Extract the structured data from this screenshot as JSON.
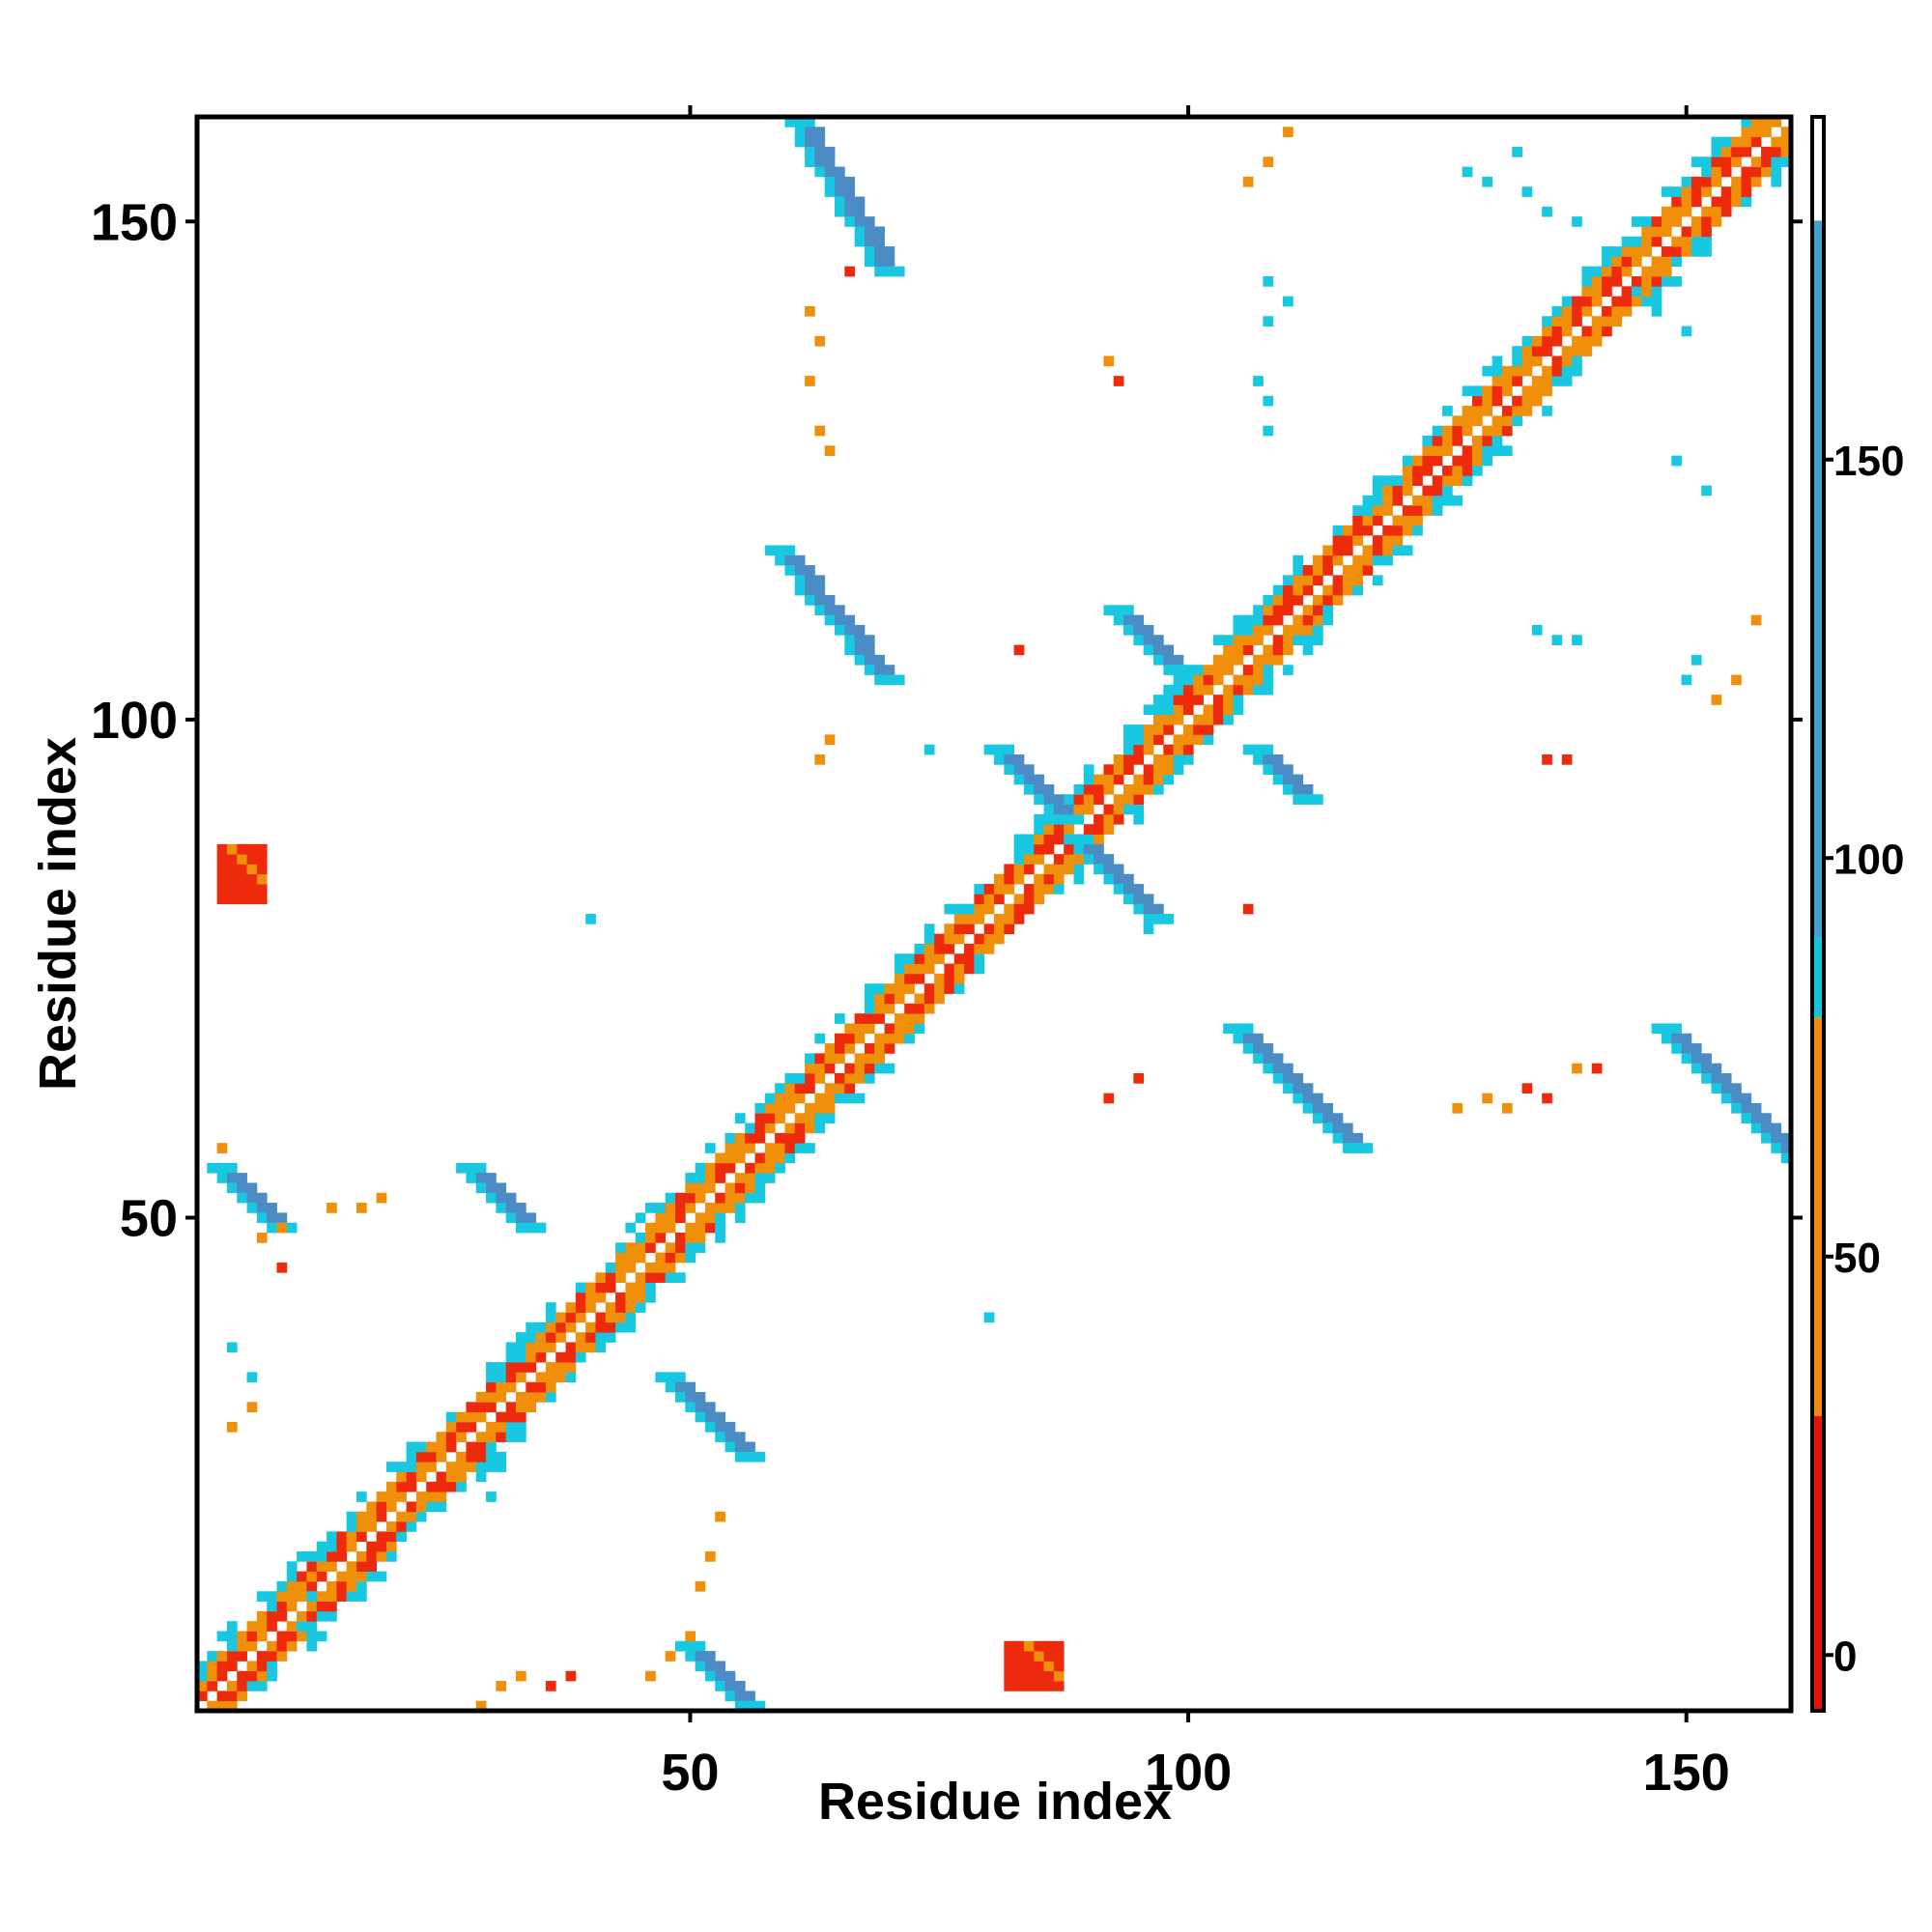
{
  "chart_data": {
    "type": "heatmap",
    "title": "",
    "xlabel": "Residue index",
    "ylabel": "Residue index",
    "xlim": [
      1,
      160
    ],
    "ylim": [
      1,
      160
    ],
    "x_ticks": [
      50,
      100,
      150
    ],
    "y_ticks": [
      50,
      100,
      150
    ],
    "colorbar": {
      "ticks": [
        0,
        50,
        100,
        150
      ],
      "range": [
        -7,
        193
      ],
      "bands": [
        {
          "from": -7,
          "to": 30,
          "color": "#e4120a"
        },
        {
          "from": 30,
          "to": 80,
          "color": "#f08a10"
        },
        {
          "from": 80,
          "to": 90,
          "color": "#0fc5dc"
        },
        {
          "from": 90,
          "to": 180,
          "color": "#46a0cc"
        },
        {
          "from": 180,
          "to": 193,
          "color": "#ffffff"
        }
      ]
    },
    "colors": {
      "red": "#ee2a0c",
      "orange": "#f0900a",
      "cyan": "#18c8e0",
      "blue": "#4b8cc4"
    },
    "grid": false,
    "legend": "colorbar-right",
    "regions": [
      {
        "kind": "diagonal",
        "from": 1,
        "to": 160
      },
      {
        "kind": "band",
        "x0": 60,
        "y0": 160,
        "x1": 69,
        "y1": 145,
        "width": 3,
        "color": "blue"
      },
      {
        "kind": "band",
        "x0": 58,
        "y0": 117,
        "x1": 69,
        "y1": 104,
        "width": 3,
        "color": "blue"
      },
      {
        "kind": "band",
        "x0": 92,
        "y0": 111,
        "x1": 98,
        "y1": 105,
        "width": 3,
        "color": "blue"
      },
      {
        "kind": "band",
        "x0": 80,
        "y0": 97,
        "x1": 87,
        "y1": 90,
        "width": 3,
        "color": "blue"
      },
      {
        "kind": "band",
        "x0": 88,
        "y0": 88,
        "x1": 96,
        "y1": 80,
        "width": 3,
        "color": "blue"
      },
      {
        "kind": "band",
        "x0": 106,
        "y0": 97,
        "x1": 111,
        "y1": 92,
        "width": 3,
        "color": "blue"
      },
      {
        "kind": "band",
        "x0": 104,
        "y0": 69,
        "x1": 116,
        "y1": 57,
        "width": 3,
        "color": "blue"
      },
      {
        "kind": "band",
        "x0": 147,
        "y0": 69,
        "x1": 160,
        "y1": 56,
        "width": 3,
        "color": "blue"
      },
      {
        "kind": "band",
        "x0": 2,
        "y0": 55,
        "x1": 8,
        "y1": 49,
        "width": 3,
        "color": "blue"
      },
      {
        "kind": "band",
        "x0": 27,
        "y0": 55,
        "x1": 33,
        "y1": 49,
        "width": 3,
        "color": "blue"
      },
      {
        "kind": "band",
        "x0": 47,
        "y0": 34,
        "x1": 55,
        "y1": 26,
        "width": 3,
        "color": "blue"
      },
      {
        "kind": "band",
        "x0": 49,
        "y0": 7,
        "x1": 55,
        "y1": 1,
        "width": 3,
        "color": "blue"
      },
      {
        "kind": "patch",
        "x0": 3,
        "y0": 82,
        "x1": 7,
        "y1": 87,
        "color": "red"
      },
      {
        "kind": "patch",
        "x0": 82,
        "y0": 3,
        "x1": 87,
        "y1": 7,
        "color": "red"
      },
      {
        "kind": "scatter",
        "color": "cyan",
        "cells": [
          [
            128,
            155
          ],
          [
            130,
            154
          ],
          [
            134,
            153
          ],
          [
            136,
            151
          ],
          [
            139,
            150
          ],
          [
            107,
            134
          ],
          [
            108,
            132
          ],
          [
            108,
            129
          ],
          [
            149,
            126
          ],
          [
            152,
            123
          ],
          [
            135,
            109
          ],
          [
            137,
            108
          ],
          [
            139,
            108
          ],
          [
            151,
            106
          ],
          [
            150,
            104
          ],
          [
            74,
            97
          ],
          [
            96,
            79
          ],
          [
            40,
            80
          ],
          [
            80,
            40
          ],
          [
            108,
            144
          ],
          [
            110,
            142
          ],
          [
            108,
            140
          ],
          [
            145,
            143
          ],
          [
            147,
            141
          ],
          [
            150,
            139
          ],
          [
            133,
            157
          ],
          [
            4,
            37
          ],
          [
            6,
            34
          ],
          [
            6,
            31
          ],
          [
            31,
            25
          ],
          [
            30,
            22
          ],
          [
            20,
            16
          ],
          [
            12,
            12
          ],
          [
            11,
            9
          ]
        ]
      },
      {
        "kind": "scatter",
        "color": "orange",
        "cells": [
          [
            62,
            141
          ],
          [
            63,
            138
          ],
          [
            62,
            134
          ],
          [
            63,
            129
          ],
          [
            64,
            127
          ],
          [
            92,
            136
          ],
          [
            110,
            159
          ],
          [
            108,
            156
          ],
          [
            106,
            154
          ],
          [
            153,
            102
          ],
          [
            155,
            104
          ],
          [
            157,
            110
          ],
          [
            63,
            96
          ],
          [
            64,
            98
          ],
          [
            127,
            61
          ],
          [
            130,
            62
          ],
          [
            132,
            61
          ],
          [
            139,
            65
          ],
          [
            3,
            57
          ],
          [
            7,
            48
          ],
          [
            9,
            49
          ],
          [
            14,
            51
          ],
          [
            17,
            51
          ],
          [
            19,
            52
          ],
          [
            4,
            29
          ],
          [
            6,
            31
          ],
          [
            29,
            1
          ],
          [
            31,
            3
          ],
          [
            33,
            4
          ],
          [
            46,
            4
          ],
          [
            48,
            6
          ],
          [
            50,
            8
          ],
          [
            51,
            13
          ],
          [
            52,
            16
          ],
          [
            53,
            20
          ]
        ]
      },
      {
        "kind": "scatter",
        "color": "red",
        "cells": [
          [
            66,
            145
          ],
          [
            93,
            134
          ],
          [
            83,
            107
          ],
          [
            106,
            81
          ],
          [
            95,
            64
          ],
          [
            92,
            62
          ],
          [
            136,
            96
          ],
          [
            138,
            96
          ],
          [
            141,
            65
          ],
          [
            136,
            62
          ],
          [
            134,
            63
          ],
          [
            9,
            45
          ],
          [
            36,
            3
          ],
          [
            38,
            4
          ]
        ]
      }
    ]
  }
}
